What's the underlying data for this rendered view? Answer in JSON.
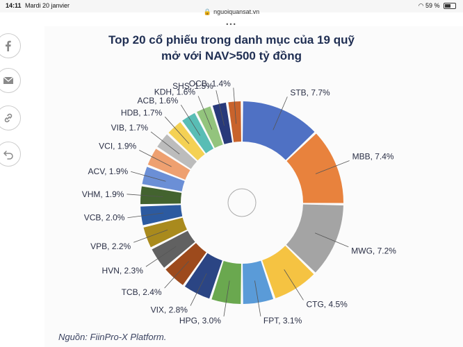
{
  "status_bar": {
    "time": "14:11",
    "date": "Mardi 20 janvier",
    "url": "nguoiquansat.vn",
    "battery": "59 %"
  },
  "page_dots": "•••",
  "share": [
    "facebook-icon",
    "mail-icon",
    "link-icon",
    "back-icon"
  ],
  "chart_data": {
    "type": "pie",
    "title_line1": "Top 20 cổ phiếu trong danh mục của 19 quỹ",
    "title_line2": "mở với NAV>500 tỷ đồng",
    "source": "Nguồn: FiinPro-X Platform.",
    "slices": [
      {
        "name": "STB",
        "value": 7.7,
        "label": "STB, 7.7%",
        "color": "#4f71c4"
      },
      {
        "name": "MBB",
        "value": 7.4,
        "label": "MBB, 7.4%",
        "color": "#e8823d"
      },
      {
        "name": "MWG",
        "value": 7.2,
        "label": "MWG, 7.2%",
        "color": "#a4a4a4"
      },
      {
        "name": "CTG",
        "value": 4.5,
        "label": "CTG, 4.5%",
        "color": "#f5c342"
      },
      {
        "name": "FPT",
        "value": 3.1,
        "label": "FPT, 3.1%",
        "color": "#5a9bd8"
      },
      {
        "name": "HPG",
        "value": 3.0,
        "label": "HPG, 3.0%",
        "color": "#6aa84f"
      },
      {
        "name": "VIX",
        "value": 2.8,
        "label": "VIX, 2.8%",
        "color": "#2b4584"
      },
      {
        "name": "TCB",
        "value": 2.4,
        "label": "TCB, 2.4%",
        "color": "#9d4a1c"
      },
      {
        "name": "HVN",
        "value": 2.3,
        "label": "HVN, 2.3%",
        "color": "#616161"
      },
      {
        "name": "VPB",
        "value": 2.2,
        "label": "VPB, 2.2%",
        "color": "#a98a1d"
      },
      {
        "name": "VCB",
        "value": 2.0,
        "label": "VCB, 2.0%",
        "color": "#2c5aa0"
      },
      {
        "name": "VHM",
        "value": 1.9,
        "label": "VHM, 1.9%",
        "color": "#43632f"
      },
      {
        "name": "ACV",
        "value": 1.9,
        "label": "ACV, 1.9%",
        "color": "#6b8fd6"
      },
      {
        "name": "VCI",
        "value": 1.9,
        "label": "VCI, 1.9%",
        "color": "#eea070"
      },
      {
        "name": "VIB",
        "value": 1.7,
        "label": "VIB, 1.7%",
        "color": "#bcbcbc"
      },
      {
        "name": "HDB",
        "value": 1.7,
        "label": "HDB, 1.7%",
        "color": "#f4d154"
      },
      {
        "name": "ACB",
        "value": 1.6,
        "label": "ACB, 1.6%",
        "color": "#59bdb5"
      },
      {
        "name": "KDH",
        "value": 1.6,
        "label": "KDH, 1.6%",
        "color": "#93c47d"
      },
      {
        "name": "SHS",
        "value": 1.5,
        "label": "SHS, 1.5%",
        "color": "#28397a"
      },
      {
        "name": "OCB",
        "value": 1.4,
        "label": "OCB, 1.4%",
        "color": "#c8632c"
      }
    ]
  }
}
